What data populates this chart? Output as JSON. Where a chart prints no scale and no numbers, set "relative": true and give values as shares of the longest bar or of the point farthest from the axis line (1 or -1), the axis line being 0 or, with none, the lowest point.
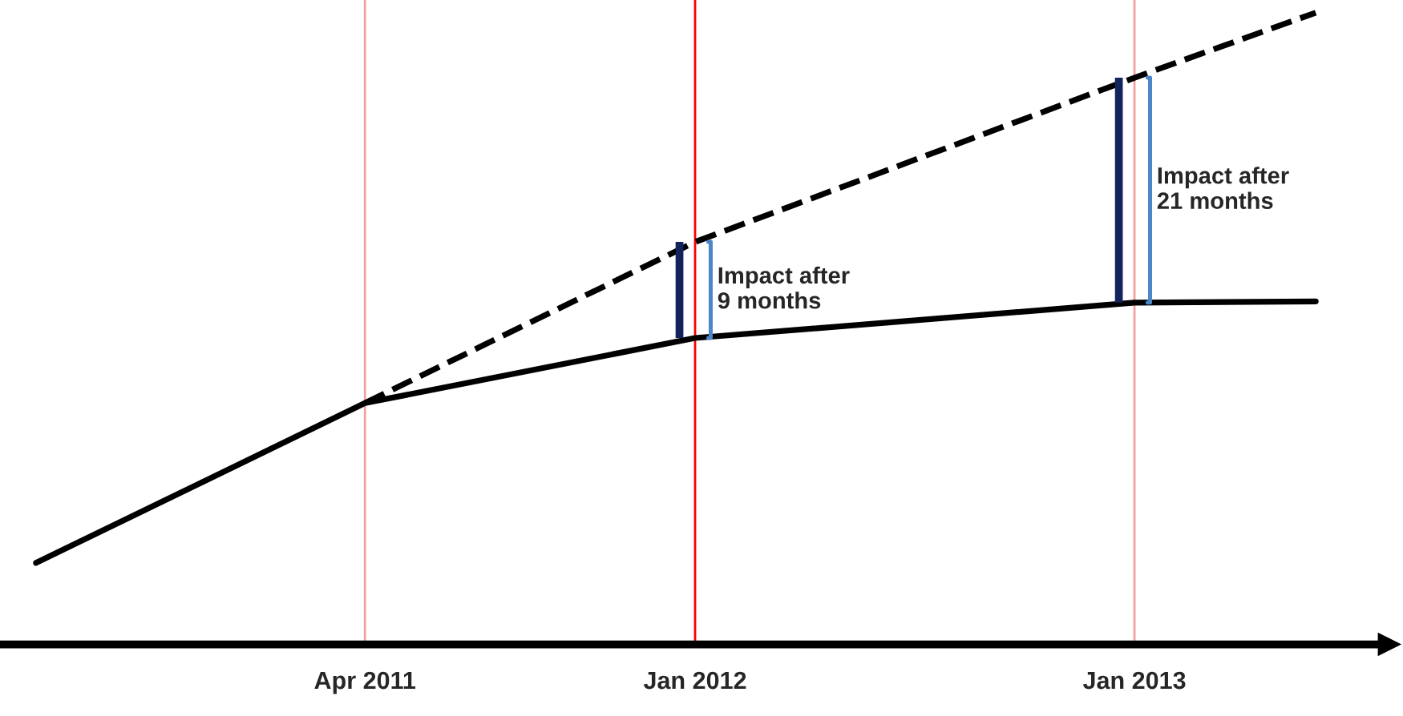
{
  "chart_data": {
    "type": "line",
    "relative": true,
    "xlim": [
      "2010-06",
      "2013-08"
    ],
    "xticks": [
      {
        "value": "2011-04",
        "label": "Apr 2011"
      },
      {
        "value": "2012-01",
        "label": "Jan 2012"
      },
      {
        "value": "2013-01",
        "label": "Jan 2013"
      }
    ],
    "series": [
      {
        "color": "#000000",
        "line_style": "solid",
        "x": [
          "2010-07",
          "2011-04",
          "2012-01",
          "2013-01",
          "2013-06"
        ],
        "values": [
          0.129,
          0.382,
          0.485,
          0.541,
          0.543
        ]
      },
      {
        "color": "#000000",
        "line_style": "dashed",
        "x": [
          "2011-04",
          "2012-01",
          "2013-01",
          "2013-06"
        ],
        "values": [
          0.382,
          0.637,
          0.897,
          1
        ]
      }
    ],
    "ref_lines": [
      {
        "axis": "x",
        "value": "2011-04",
        "color": "#f4a0a0"
      },
      {
        "axis": "x",
        "value": "2012-01",
        "color": "#ff0000"
      },
      {
        "axis": "x",
        "value": "2013-01",
        "color": "#f4a0a0"
      }
    ],
    "annotations": [
      {
        "text": "Impact after\n9 months",
        "x": "2012-01",
        "y": 0.561
      },
      {
        "text": "Impact after\n21 months",
        "x": "2013-01",
        "y": 0.719
      }
    ],
    "grid": false,
    "legend": false,
    "marker": "none"
  }
}
